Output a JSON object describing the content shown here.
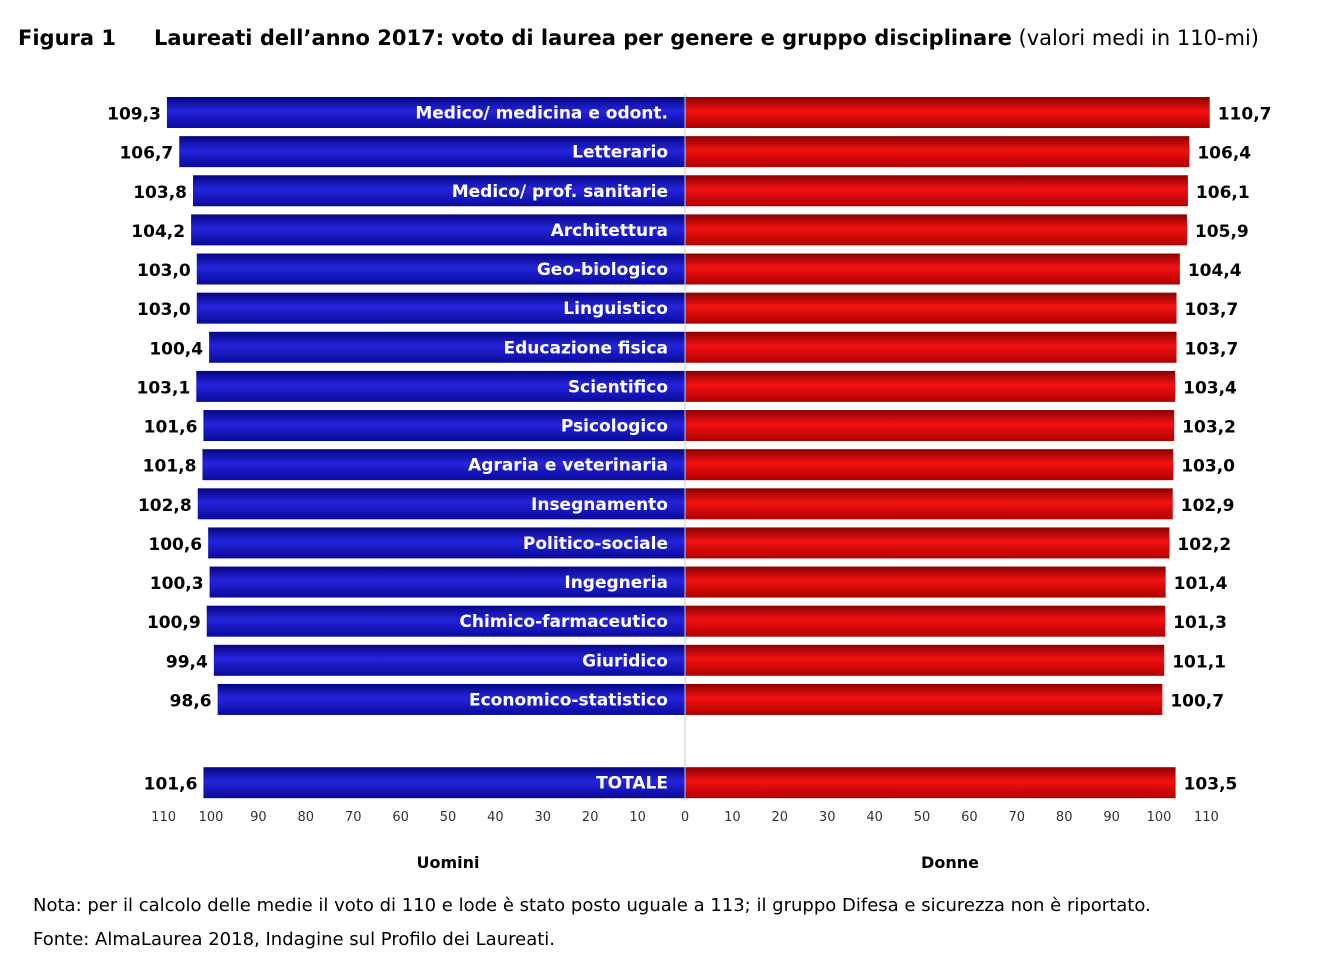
{
  "figure": {
    "number": "Figura 1",
    "title": "Laureati dell’anno 2017: voto di laurea per genere e gruppo disciplinare",
    "subtitle": "(valori medi in 110-mi)"
  },
  "chart_data": {
    "type": "bar",
    "orientation": "horizontal-diverging",
    "categories": [
      "Medico/ medicina e odont.",
      "Letterario",
      "Medico/ prof. sanitarie",
      "Architettura",
      "Geo-biologico",
      "Linguistico",
      "Educazione fisica",
      "Scientifico",
      "Psicologico",
      "Agraria e veterinaria",
      "Insegnamento",
      "Politico-sociale",
      "Ingegneria",
      "Chimico-farmaceutico",
      "Giuridico",
      "Economico-statistico"
    ],
    "series": [
      {
        "name": "Uomini",
        "color": "#1a1acc",
        "values": [
          109.3,
          106.7,
          103.8,
          104.2,
          103.0,
          103.0,
          100.4,
          103.1,
          101.6,
          101.8,
          102.8,
          100.6,
          100.3,
          100.9,
          99.4,
          98.6
        ],
        "labels": [
          "109,3",
          "106,7",
          "103,8",
          "104,2",
          "103,0",
          "103,0",
          "100,4",
          "103,1",
          "101,6",
          "101,8",
          "102,8",
          "100,6",
          "100,3",
          "100,9",
          "99,4",
          "98,6"
        ]
      },
      {
        "name": "Donne",
        "color": "#e01010",
        "values": [
          110.7,
          106.4,
          106.1,
          105.9,
          104.4,
          103.7,
          103.7,
          103.4,
          103.2,
          103.0,
          102.9,
          102.2,
          101.4,
          101.3,
          101.1,
          100.7
        ],
        "labels": [
          "110,7",
          "106,4",
          "106,1",
          "105,9",
          "104,4",
          "103,7",
          "103,7",
          "103,4",
          "103,2",
          "103,0",
          "102,9",
          "102,2",
          "101,4",
          "101,3",
          "101,1",
          "100,7"
        ]
      }
    ],
    "total": {
      "category": "TOTALE",
      "values": [
        101.6,
        103.5
      ],
      "labels": [
        "101,6",
        "103,5"
      ]
    },
    "x_ticks_left": [
      "110",
      "100",
      "90",
      "80",
      "70",
      "60",
      "50",
      "40",
      "30",
      "20",
      "10",
      "0"
    ],
    "x_ticks_right": [
      "10",
      "20",
      "30",
      "40",
      "50",
      "60",
      "70",
      "80",
      "90",
      "100",
      "110"
    ],
    "xlim": [
      0,
      110
    ],
    "xlabel_left": "Uomini",
    "xlabel_right": "Donne",
    "grid": false,
    "legend": "none"
  },
  "notes": {
    "nota": "Nota: per il calcolo delle medie il voto di 110 e lode è stato posto uguale a 113; il gruppo Difesa e sicurezza non è riportato.",
    "fonte": "Fonte: AlmaLaurea 2018, Indagine sul Profilo dei Laureati."
  }
}
